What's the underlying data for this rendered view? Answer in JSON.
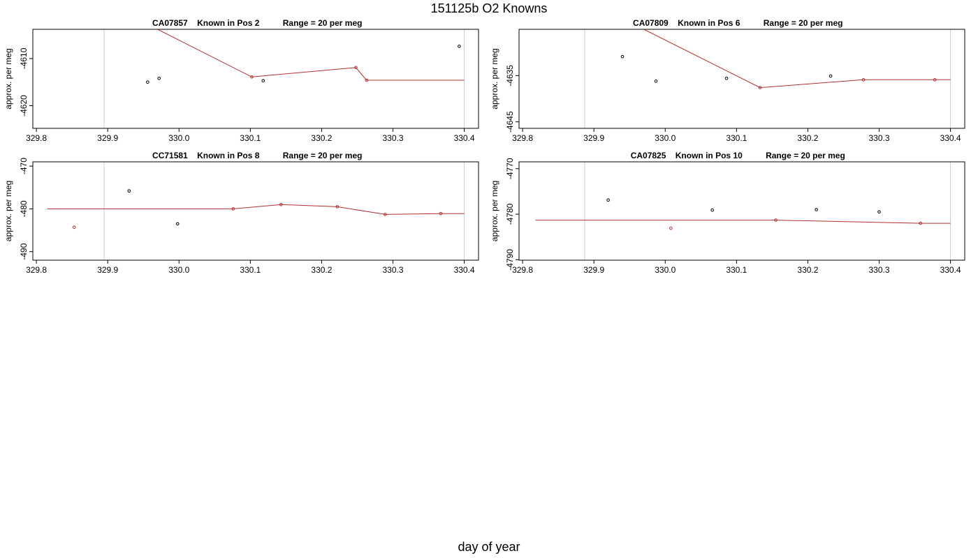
{
  "page": {
    "title": "151125b   O2 Knowns",
    "xlabel": "day of year"
  },
  "colors": {
    "fit_line": "#b03030",
    "point_stroke": "#000000",
    "fit_point_stroke": "#b03030",
    "marker_line": "#cccccc"
  },
  "chart_data": [
    {
      "type": "scatter",
      "title": "CA07857    Known in Pos 2          Range = 20 per meg",
      "xlabel": "",
      "ylabel": "approx. per meg",
      "xlim": [
        329.795,
        330.42
      ],
      "ylim": [
        4624.8,
        4603.8
      ],
      "x_ticks": [
        329.8,
        329.9,
        330.0,
        330.1,
        330.2,
        330.3,
        330.4
      ],
      "x_tick_labels": [
        "329.8",
        "329.9",
        "330.0",
        "330.1",
        "330.2",
        "330.3",
        "330.4"
      ],
      "y_ticks": [
        4610,
        4620
      ],
      "y_tick_labels": [
        "-4610",
        "-4620"
      ],
      "vlines": [
        329.895,
        330.4
      ],
      "points": [
        {
          "x": 329.956,
          "y": 4615.0
        },
        {
          "x": 329.972,
          "y": 4614.2
        },
        {
          "x": 330.118,
          "y": 4614.7
        },
        {
          "x": 330.393,
          "y": 4607.4
        }
      ],
      "fit": [
        {
          "x": 329.97,
          "y": 4603.8
        },
        {
          "x": 330.102,
          "y": 4613.9
        },
        {
          "x": 330.248,
          "y": 4611.9
        },
        {
          "x": 330.263,
          "y": 4614.6
        },
        {
          "x": 330.4,
          "y": 4614.6
        }
      ],
      "fit_points": [
        330.102,
        330.248,
        330.263
      ]
    },
    {
      "type": "scatter",
      "title": "CA07809    Known in Pos 6          Range = 20 per meg",
      "xlabel": "",
      "ylabel": "approx. per meg",
      "xlim": [
        329.795,
        330.42
      ],
      "ylim": [
        4646.4,
        4625.0
      ],
      "x_ticks": [
        329.8,
        329.9,
        330.0,
        330.1,
        330.2,
        330.3,
        330.4
      ],
      "x_tick_labels": [
        "329.8",
        "329.9",
        "330.0",
        "330.1",
        "330.2",
        "330.3",
        "330.4"
      ],
      "y_ticks": [
        4635,
        4645
      ],
      "y_tick_labels": [
        "-4635",
        "-4645"
      ],
      "vlines": [
        329.887,
        330.4
      ],
      "points": [
        {
          "x": 329.94,
          "y": 4630.9
        },
        {
          "x": 329.987,
          "y": 4636.2
        },
        {
          "x": 330.086,
          "y": 4635.6
        },
        {
          "x": 330.232,
          "y": 4635.1
        }
      ],
      "fit": [
        {
          "x": 329.97,
          "y": 4625.0
        },
        {
          "x": 330.133,
          "y": 4637.6
        },
        {
          "x": 330.278,
          "y": 4635.9
        },
        {
          "x": 330.378,
          "y": 4635.9
        },
        {
          "x": 330.4,
          "y": 4635.9
        }
      ],
      "fit_points": [
        330.133,
        330.278,
        330.378
      ]
    },
    {
      "type": "scatter",
      "title": "CC71581    Known in Pos 8          Range = 20 per meg",
      "xlabel": "",
      "ylabel": "approx. per meg",
      "xlim": [
        329.795,
        330.42
      ],
      "ylim": [
        492.0,
        469.0
      ],
      "x_ticks": [
        329.8,
        329.9,
        330.0,
        330.1,
        330.2,
        330.3,
        330.4
      ],
      "x_tick_labels": [
        "329.8",
        "329.9",
        "330.0",
        "330.1",
        "330.2",
        "330.3",
        "330.4"
      ],
      "y_ticks": [
        470,
        480,
        490
      ],
      "y_tick_labels": [
        "-470",
        "-480",
        "-490"
      ],
      "vlines": [
        329.895,
        330.4
      ],
      "points": [
        {
          "x": 329.93,
          "y": 475.8
        },
        {
          "x": 329.998,
          "y": 483.5
        }
      ],
      "fit": [
        {
          "x": 329.815,
          "y": 480.0
        },
        {
          "x": 330.076,
          "y": 480.0
        },
        {
          "x": 330.143,
          "y": 479.0
        },
        {
          "x": 330.222,
          "y": 479.5
        },
        {
          "x": 330.289,
          "y": 481.3
        },
        {
          "x": 330.367,
          "y": 481.1
        },
        {
          "x": 330.4,
          "y": 481.1
        }
      ],
      "fit_points": [
        329.853,
        330.076,
        330.143,
        330.222,
        330.289,
        330.367
      ],
      "extra_fit_points": [
        {
          "x": 329.853,
          "y": 484.3
        }
      ]
    },
    {
      "type": "scatter",
      "title": "CA07825    Known in Pos 10          Range = 20 per meg",
      "xlabel": "",
      "ylabel": "approx. per meg",
      "xlim": [
        329.795,
        330.42
      ],
      "ylim": [
        4790.1,
        4768.5
      ],
      "x_ticks": [
        329.8,
        329.9,
        330.0,
        330.1,
        330.2,
        330.3,
        330.4
      ],
      "x_tick_labels": [
        "329.8",
        "329.9",
        "330.0",
        "330.1",
        "330.2",
        "330.3",
        "330.4"
      ],
      "y_ticks": [
        4770,
        4780,
        4790
      ],
      "y_tick_labels": [
        "-4770",
        "-4780",
        "-4790"
      ],
      "vlines": [
        329.887,
        330.4
      ],
      "points": [
        {
          "x": 329.92,
          "y": 4776.9
        },
        {
          "x": 330.066,
          "y": 4779.1
        },
        {
          "x": 330.212,
          "y": 4779.0
        },
        {
          "x": 330.3,
          "y": 4779.5
        }
      ],
      "fit": [
        {
          "x": 329.818,
          "y": 4781.3
        },
        {
          "x": 330.155,
          "y": 4781.3
        },
        {
          "x": 330.358,
          "y": 4782.0
        },
        {
          "x": 330.4,
          "y": 4782.0
        }
      ],
      "fit_points": [
        330.155,
        330.358
      ],
      "extra_fit_points": [
        {
          "x": 330.008,
          "y": 4783.1
        }
      ]
    }
  ]
}
